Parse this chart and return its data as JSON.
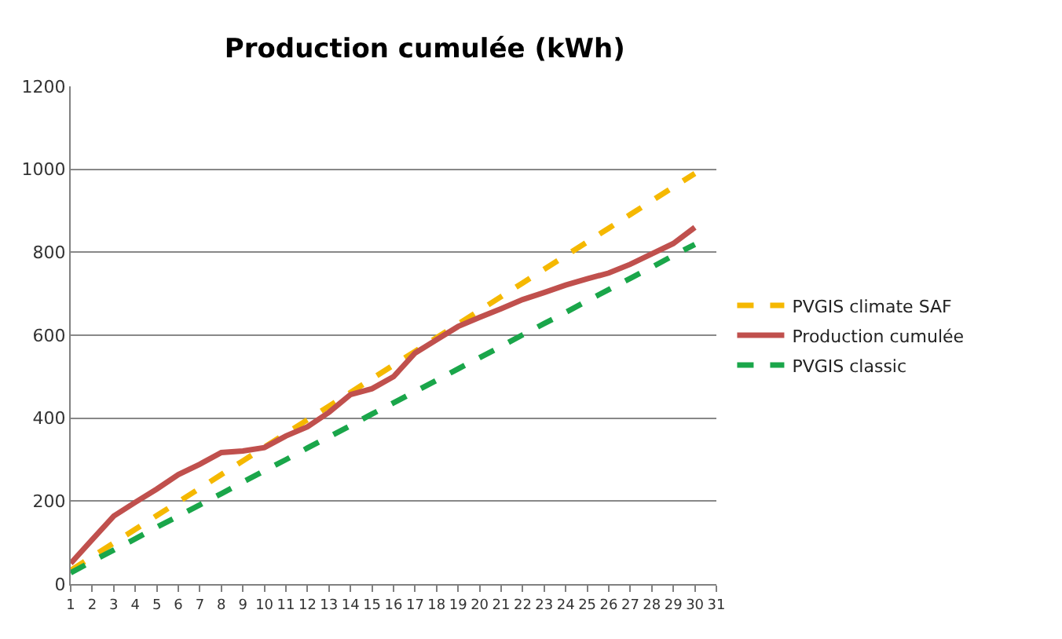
{
  "chart_data": {
    "type": "line",
    "title": "Production cumulée (kWh)",
    "x": [
      1,
      2,
      3,
      4,
      5,
      6,
      7,
      8,
      9,
      10,
      11,
      12,
      13,
      14,
      15,
      16,
      17,
      18,
      19,
      20,
      21,
      22,
      23,
      24,
      25,
      26,
      27,
      28,
      29,
      30
    ],
    "series": [
      {
        "name": "PVGIS climate SAF",
        "color": "#f5b800",
        "line_style": "dashed",
        "values": [
          33,
          66,
          99,
          132,
          165,
          198,
          231,
          264,
          297,
          330,
          363,
          396,
          429,
          462,
          495,
          528,
          561,
          594,
          627,
          660,
          693,
          726,
          759,
          792,
          825,
          858,
          891,
          924,
          957,
          990
        ]
      },
      {
        "name": "Production cumulée",
        "color": "#c0504d",
        "line_style": "solid",
        "values": [
          50,
          107,
          164,
          197,
          229,
          264,
          289,
          317,
          321,
          329,
          357,
          379,
          414,
          457,
          471,
          500,
          557,
          589,
          621,
          643,
          664,
          686,
          703,
          721,
          736,
          750,
          771,
          796,
          821,
          860
        ]
      },
      {
        "name": "PVGIS classic",
        "color": "#1aa64a",
        "line_style": "dashed",
        "values": [
          27,
          55,
          82,
          109,
          137,
          164,
          191,
          218,
          246,
          273,
          300,
          328,
          355,
          382,
          410,
          437,
          464,
          491,
          519,
          546,
          573,
          601,
          628,
          655,
          683,
          710,
          737,
          764,
          792,
          819
        ]
      }
    ],
    "xlim": [
      1,
      31
    ],
    "xticks": [
      1,
      2,
      3,
      4,
      5,
      6,
      7,
      8,
      9,
      10,
      11,
      12,
      13,
      14,
      15,
      16,
      17,
      18,
      19,
      20,
      21,
      22,
      23,
      24,
      25,
      26,
      27,
      28,
      29,
      30,
      31
    ],
    "ylim": [
      0,
      1200
    ],
    "yticks": [
      0,
      200,
      400,
      600,
      800,
      1000,
      1200
    ],
    "grid": "y",
    "legend": "right",
    "marker": "none"
  }
}
